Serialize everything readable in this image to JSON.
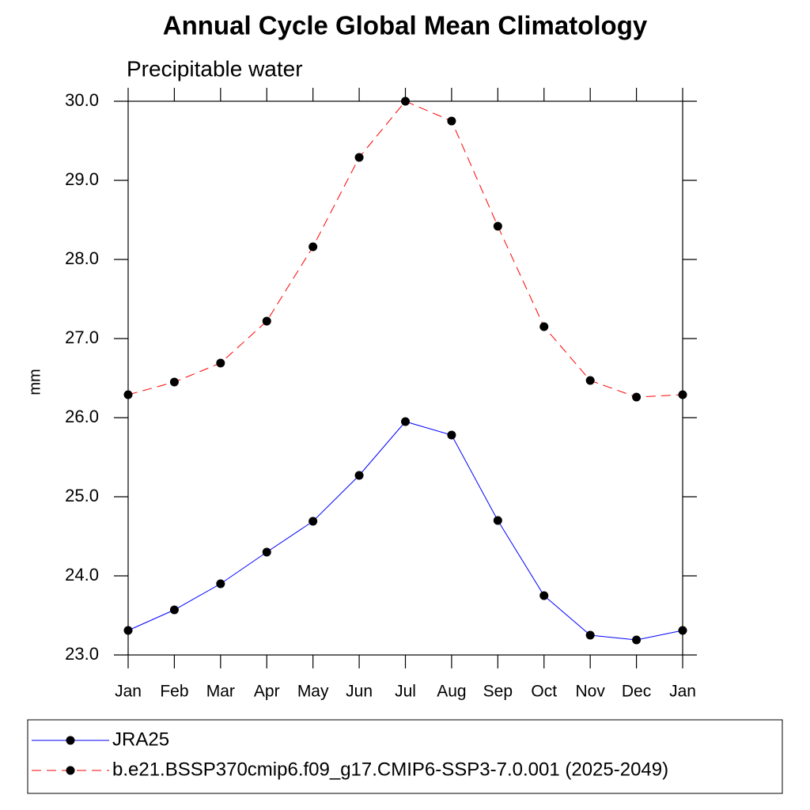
{
  "chart_data": {
    "type": "line",
    "title": "Annual Cycle Global Mean Climatology",
    "subtitle": "Precipitable water",
    "y_label": "mm",
    "categories": [
      "Jan",
      "Feb",
      "Mar",
      "Apr",
      "May",
      "Jun",
      "Jul",
      "Aug",
      "Sep",
      "Oct",
      "Nov",
      "Dec",
      "Jan"
    ],
    "series": [
      {
        "name": "JRA25",
        "color": "#0000ff",
        "line_style": "solid",
        "values": [
          23.31,
          23.57,
          23.9,
          24.3,
          24.69,
          25.27,
          25.95,
          25.78,
          24.7,
          23.75,
          23.25,
          23.19,
          23.31
        ]
      },
      {
        "name": "b.e21.BSSP370cmip6.f09_g17.CMIP6-SSP3-7.0.001 (2025-2049)",
        "color": "#ff0000",
        "line_style": "dashed",
        "values": [
          26.29,
          26.45,
          26.69,
          27.22,
          28.16,
          29.29,
          30.0,
          29.75,
          28.42,
          27.15,
          26.47,
          26.26,
          26.29
        ]
      }
    ],
    "ylim": [
      23,
      30
    ],
    "yticks": [
      {
        "value": 23,
        "label": "23.0"
      },
      {
        "value": 24,
        "label": "24.0"
      },
      {
        "value": 25,
        "label": "25.0"
      },
      {
        "value": 26,
        "label": "26.0"
      },
      {
        "value": 27,
        "label": "27.0"
      },
      {
        "value": 28,
        "label": "28.0"
      },
      {
        "value": 29,
        "label": "29.0"
      },
      {
        "value": 30,
        "label": "30.0"
      }
    ],
    "grid": false
  }
}
